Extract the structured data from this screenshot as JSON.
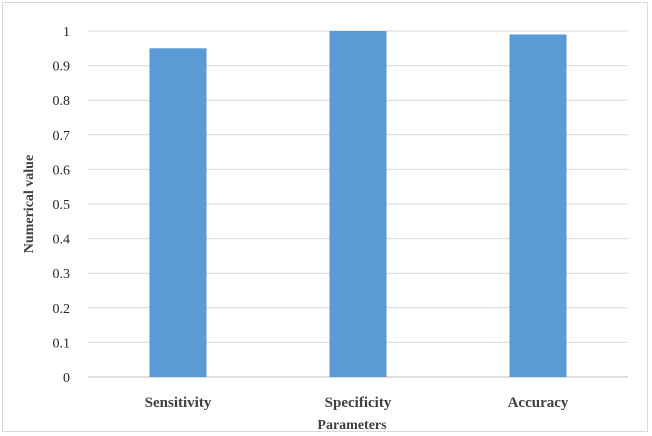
{
  "chart_data": {
    "type": "bar",
    "title": "",
    "xlabel": "Parameters",
    "ylabel": "Numerical value",
    "categories": [
      "Sensitivity",
      "Specificity",
      "Accuracy"
    ],
    "values": [
      0.95,
      1.0,
      0.99
    ],
    "ylim": [
      0,
      1
    ],
    "yticks": [
      "0",
      "0.1",
      "0.2",
      "0.3",
      "0.4",
      "0.5",
      "0.6",
      "0.7",
      "0.8",
      "0.9",
      "1"
    ],
    "grid": true,
    "legend": "none",
    "bar_color": "#5b9bd5",
    "grid_color": "#d9d9d9"
  }
}
